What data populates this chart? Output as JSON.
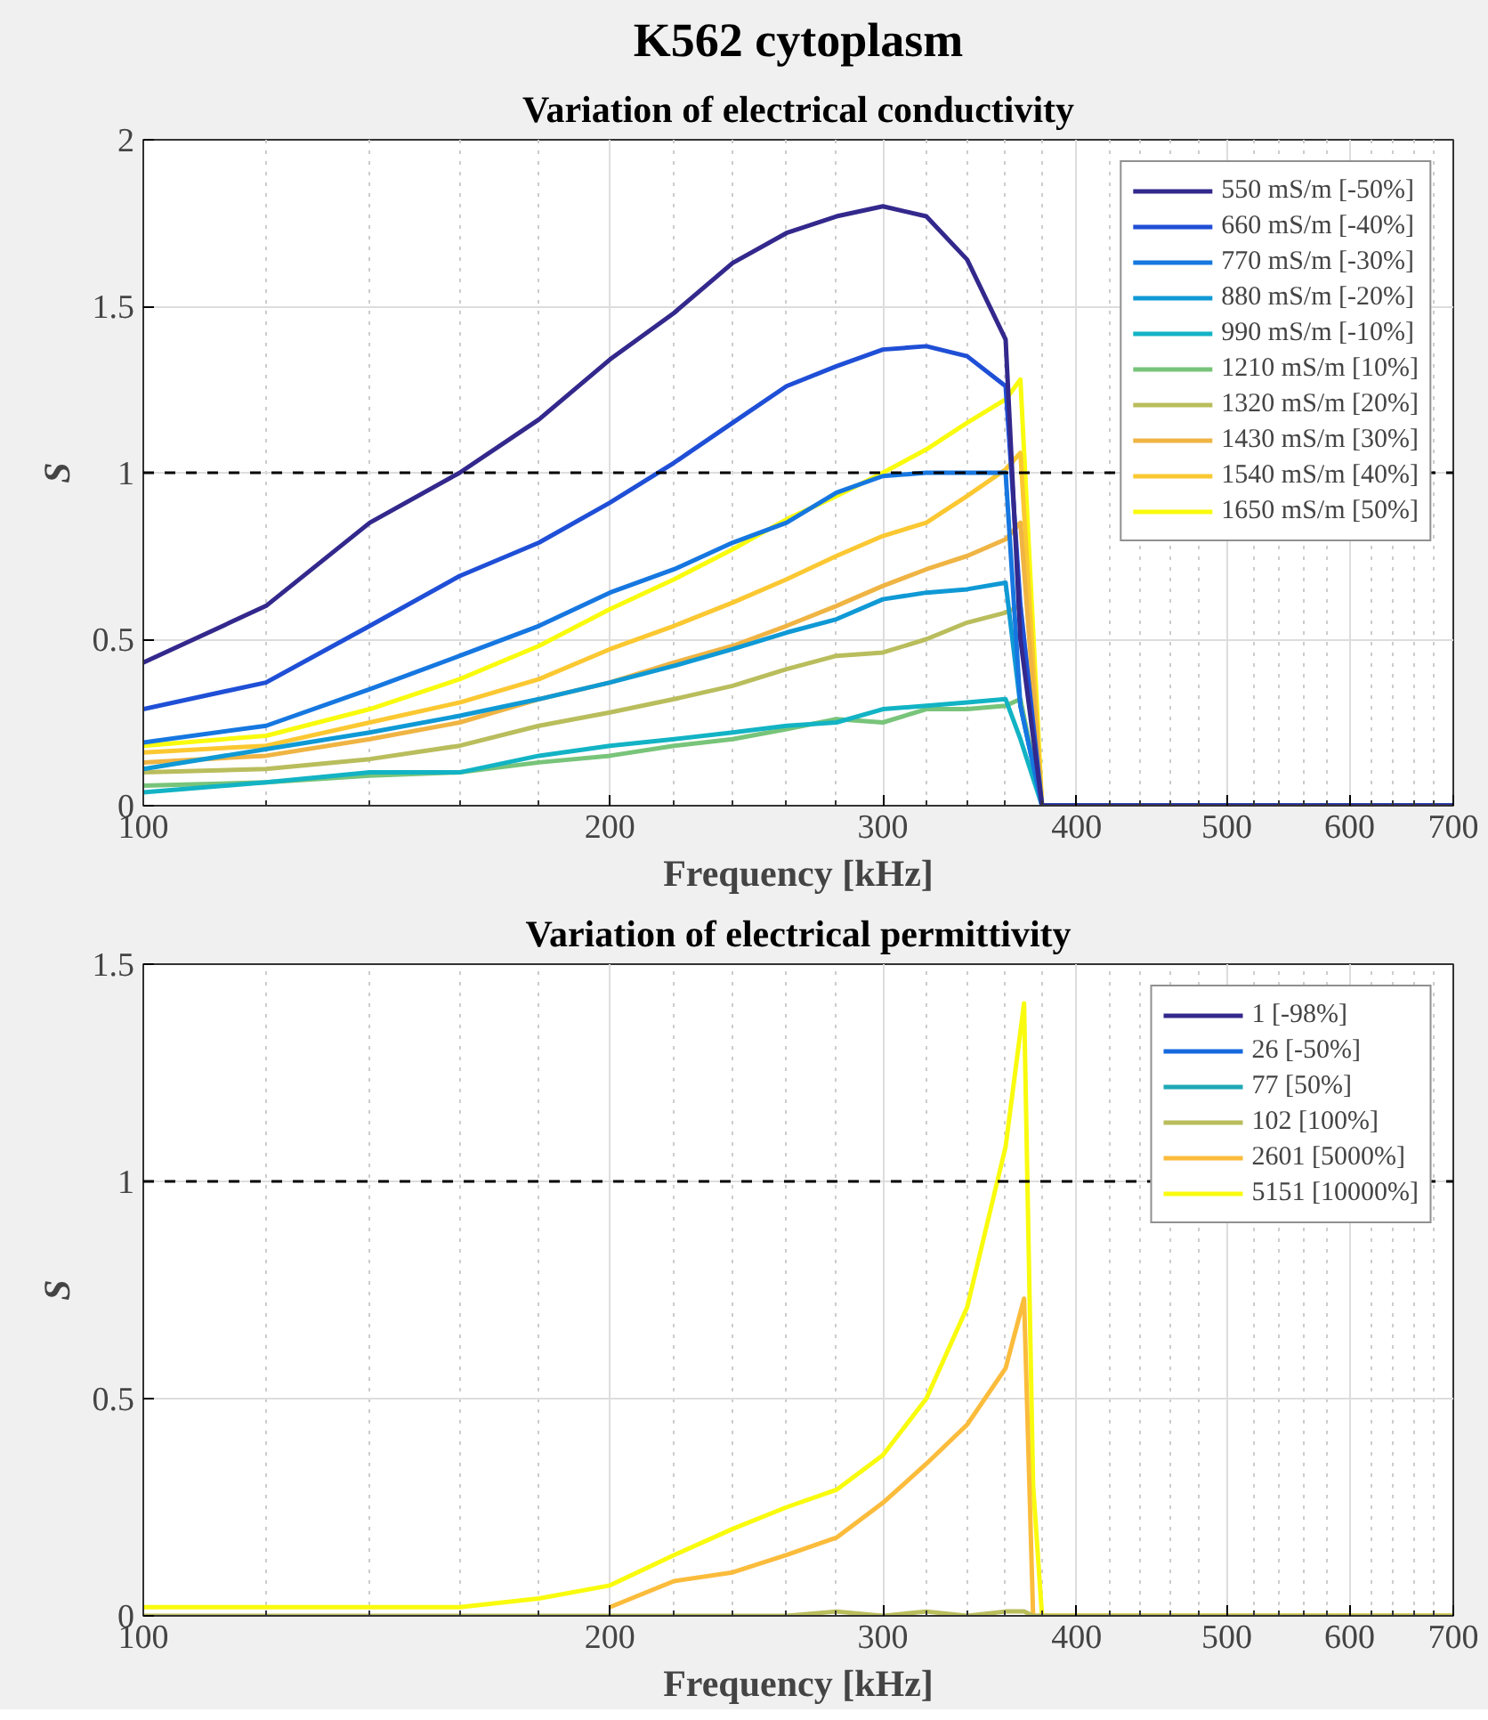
{
  "chart_data": [
    {
      "type": "line",
      "title": "K562 cytoplasm",
      "subtitle": "Variation of electrical conductivity",
      "xlabel": "Frequency [kHz]",
      "ylabel": "S",
      "log": "x",
      "x": [
        100,
        120,
        140,
        160,
        180,
        200,
        220,
        240,
        260,
        280,
        300,
        320,
        340,
        360,
        368,
        380,
        700
      ],
      "xlim": [
        100,
        700
      ],
      "xticks": [
        100,
        200,
        300,
        400,
        500,
        600,
        700
      ],
      "ylim": [
        0,
        2
      ],
      "yticks": [
        0,
        0.5,
        1,
        1.5,
        2
      ],
      "grid": true,
      "legend": "top right",
      "marker": "none",
      "line_style": "solid",
      "ref_lines": [
        {
          "axis": "y",
          "value": 1,
          "label": null,
          "color": "#000000",
          "line_style": "dashed"
        }
      ],
      "series": [
        {
          "name": "550 mS/m [-50%]",
          "color": "#33288c",
          "values": [
            0.43,
            0.6,
            0.85,
            1.0,
            1.16,
            1.34,
            1.48,
            1.63,
            1.72,
            1.77,
            1.8,
            1.77,
            1.64,
            1.4,
            0.5,
            0,
            0
          ]
        },
        {
          "name": "660 mS/m [-40%]",
          "color": "#1f4fd6",
          "values": [
            0.29,
            0.37,
            0.54,
            0.69,
            0.79,
            0.91,
            1.03,
            1.15,
            1.26,
            1.32,
            1.37,
            1.38,
            1.35,
            1.26,
            0.6,
            0,
            0
          ]
        },
        {
          "name": "770 mS/m [-30%]",
          "color": "#1677e0",
          "values": [
            0.19,
            0.24,
            0.35,
            0.45,
            0.54,
            0.64,
            0.71,
            0.79,
            0.85,
            0.94,
            0.99,
            1.0,
            1.0,
            1.0,
            0.3,
            0,
            0
          ]
        },
        {
          "name": "880 mS/m [-20%]",
          "color": "#0f99d5",
          "values": [
            0.11,
            0.17,
            0.22,
            0.27,
            0.32,
            0.37,
            0.42,
            0.47,
            0.52,
            0.56,
            0.62,
            0.64,
            0.65,
            0.67,
            0.3,
            0,
            0
          ]
        },
        {
          "name": "990 mS/m [-10%]",
          "color": "#12b3c4",
          "values": [
            0.04,
            0.07,
            0.1,
            0.1,
            0.15,
            0.18,
            0.2,
            0.22,
            0.24,
            0.25,
            0.29,
            0.3,
            0.31,
            0.32,
            0.2,
            0,
            0
          ]
        },
        {
          "name": "1210 mS/m [10%]",
          "color": "#78c47a",
          "values": [
            0.06,
            0.07,
            0.09,
            0.1,
            0.13,
            0.15,
            0.18,
            0.2,
            0.23,
            0.26,
            0.25,
            0.29,
            0.29,
            0.3,
            0.32,
            0,
            0
          ]
        },
        {
          "name": "1320 mS/m [20%]",
          "color": "#b9bd5c",
          "values": [
            0.1,
            0.11,
            0.14,
            0.18,
            0.24,
            0.28,
            0.32,
            0.36,
            0.41,
            0.45,
            0.46,
            0.5,
            0.55,
            0.58,
            0.6,
            0,
            0
          ]
        },
        {
          "name": "1430 mS/m [30%]",
          "color": "#efb443",
          "values": [
            0.13,
            0.15,
            0.2,
            0.25,
            0.32,
            0.37,
            0.43,
            0.48,
            0.54,
            0.6,
            0.66,
            0.71,
            0.75,
            0.8,
            0.85,
            0,
            0
          ]
        },
        {
          "name": "1540 mS/m [40%]",
          "color": "#fbc832",
          "values": [
            0.16,
            0.18,
            0.25,
            0.31,
            0.38,
            0.47,
            0.54,
            0.61,
            0.68,
            0.75,
            0.81,
            0.85,
            0.93,
            1.01,
            1.06,
            0,
            0
          ]
        },
        {
          "name": "1650 mS/m [50%]",
          "color": "#f9fb0e",
          "values": [
            0.18,
            0.21,
            0.29,
            0.38,
            0.48,
            0.59,
            0.68,
            0.77,
            0.86,
            0.93,
            1.0,
            1.07,
            1.15,
            1.22,
            1.28,
            0,
            0
          ]
        }
      ]
    },
    {
      "type": "line",
      "subtitle": "Variation of electrical permittivity",
      "xlabel": "Frequency [kHz]",
      "ylabel": "S",
      "log": "x",
      "x": [
        100,
        120,
        140,
        160,
        180,
        200,
        220,
        240,
        260,
        280,
        300,
        320,
        340,
        360,
        370,
        375,
        380,
        700
      ],
      "xlim": [
        100,
        700
      ],
      "xticks": [
        100,
        200,
        300,
        400,
        500,
        600,
        700
      ],
      "ylim": [
        0,
        1.5
      ],
      "yticks": [
        0,
        0.5,
        1,
        1.5
      ],
      "grid": true,
      "legend": "top right",
      "marker": "none",
      "line_style": "solid",
      "ref_lines": [
        {
          "axis": "y",
          "value": 1,
          "label": null,
          "color": "#000000",
          "line_style": "dashed"
        }
      ],
      "series": [
        {
          "name": "1 [-98%]",
          "color": "#33288c",
          "values": [
            null,
            null,
            null,
            null,
            null,
            null,
            null,
            null,
            null,
            null,
            null,
            null,
            null,
            null,
            null,
            null,
            null,
            null
          ]
        },
        {
          "name": "26 [-50%]",
          "color": "#1669dd",
          "values": [
            null,
            null,
            null,
            null,
            null,
            null,
            null,
            null,
            null,
            null,
            null,
            null,
            null,
            null,
            null,
            null,
            null,
            null
          ]
        },
        {
          "name": "77 [50%]",
          "color": "#1fa8b5",
          "values": [
            null,
            null,
            null,
            null,
            null,
            null,
            null,
            null,
            null,
            null,
            null,
            null,
            null,
            null,
            null,
            null,
            null,
            null
          ]
        },
        {
          "name": "102 [100%]",
          "color": "#b9bd5c",
          "values": [
            0,
            0,
            0,
            0,
            0,
            0,
            0,
            0,
            0,
            0.01,
            0,
            0.01,
            0,
            0.01,
            0.01,
            0,
            0,
            0
          ]
        },
        {
          "name": "2601 [5000%]",
          "color": "#fbbc3c",
          "values": [
            null,
            null,
            null,
            null,
            null,
            0.02,
            0.08,
            0.1,
            0.14,
            0.18,
            0.26,
            0.35,
            0.44,
            0.57,
            0.73,
            0,
            0,
            0
          ]
        },
        {
          "name": "5151 [10000%]",
          "color": "#f9fb0e",
          "values": [
            0.02,
            0.02,
            0.02,
            0.02,
            0.04,
            0.07,
            0.14,
            0.2,
            0.25,
            0.29,
            0.37,
            0.5,
            0.71,
            1.08,
            1.41,
            0.3,
            0,
            0
          ]
        }
      ]
    }
  ]
}
